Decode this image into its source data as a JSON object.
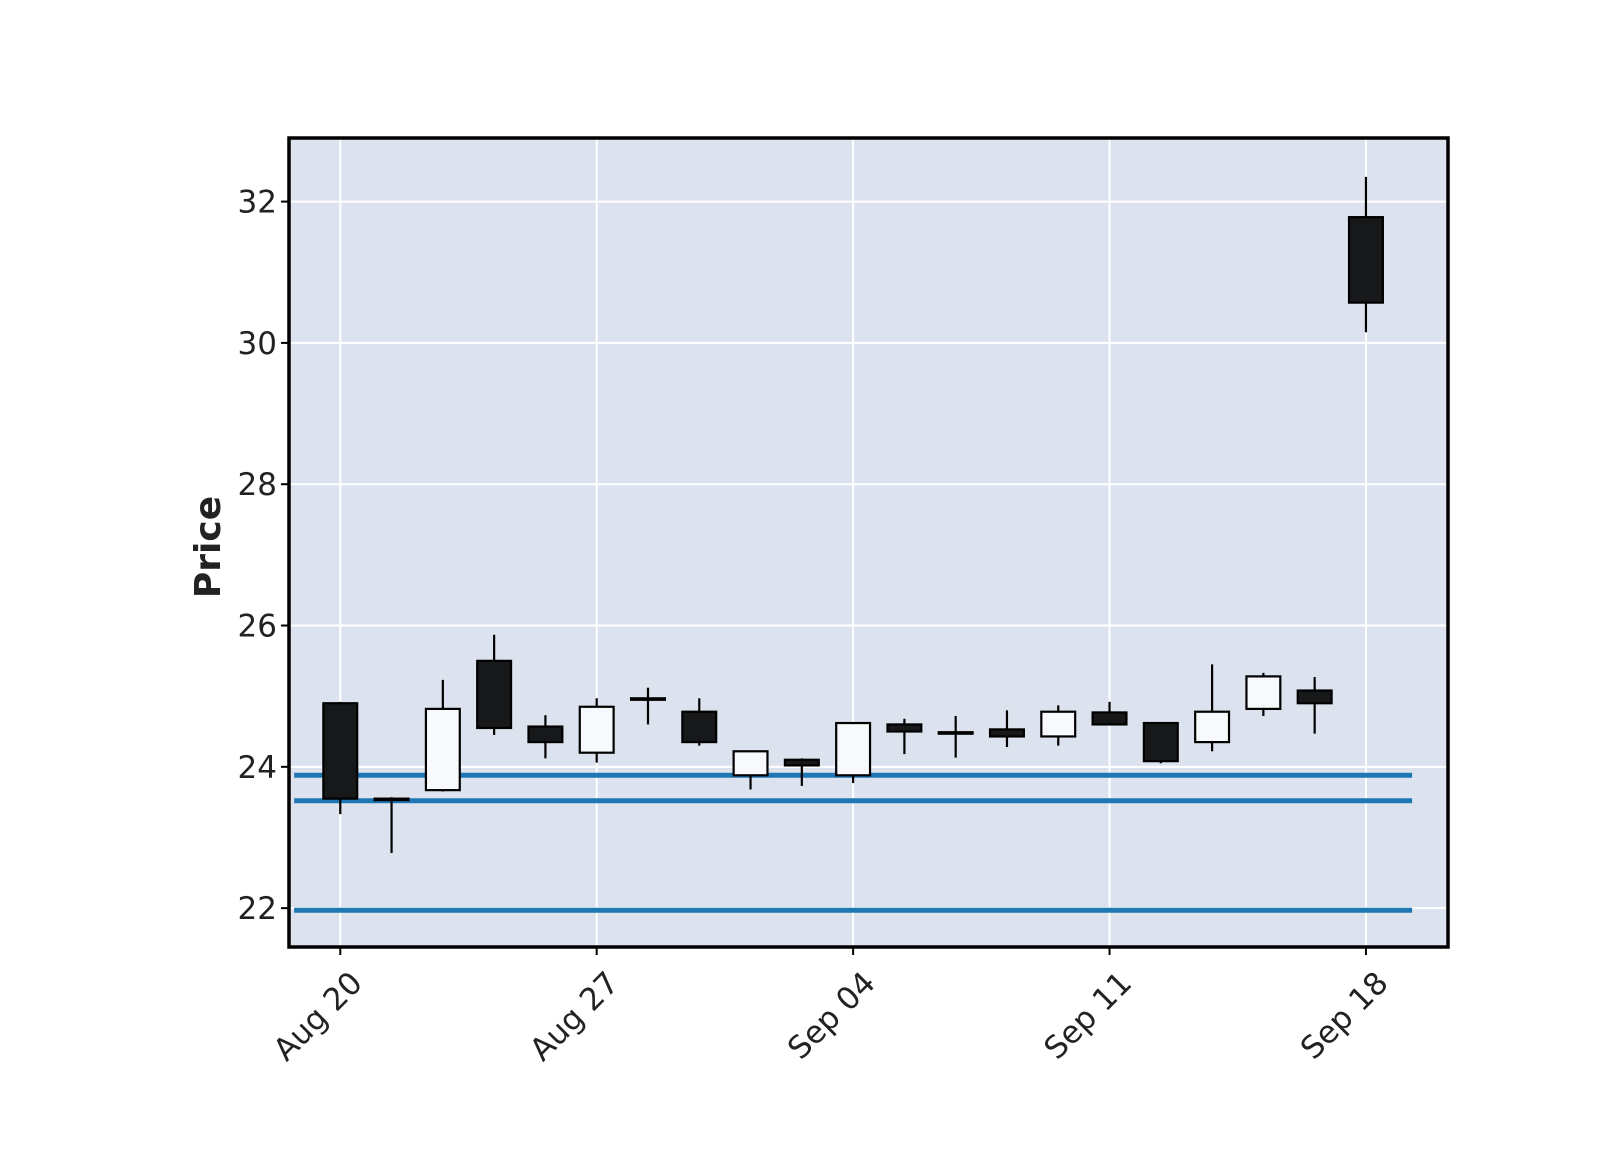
{
  "chart_data": {
    "type": "candlestick",
    "title": "",
    "xlabel": "",
    "ylabel": "Price",
    "ylim": [
      21.45,
      32.9
    ],
    "y_ticks": [
      22,
      24,
      26,
      28,
      30,
      32
    ],
    "x_tick_labels": [
      "Aug 20",
      "Aug 27",
      "Sep 04",
      "Sep 11",
      "Sep 18"
    ],
    "x_tick_indices": [
      0,
      5,
      10,
      15,
      20
    ],
    "grid": true,
    "colors": {
      "background": "#dde3ee",
      "grid": "#ffffff",
      "up_fill": "#f7f9fc",
      "down_fill": "#17181a",
      "edge": "#000000",
      "hline": "#1f77b4"
    },
    "candles": [
      {
        "index": 0,
        "open": 24.9,
        "high": 24.92,
        "low": 23.33,
        "close": 23.55
      },
      {
        "index": 1,
        "open": 23.55,
        "high": 23.57,
        "low": 22.78,
        "close": 23.53
      },
      {
        "index": 2,
        "open": 23.67,
        "high": 25.23,
        "low": 23.65,
        "close": 24.82
      },
      {
        "index": 3,
        "open": 25.5,
        "high": 25.87,
        "low": 24.45,
        "close": 24.55
      },
      {
        "index": 4,
        "open": 24.57,
        "high": 24.73,
        "low": 24.12,
        "close": 24.35
      },
      {
        "index": 5,
        "open": 24.2,
        "high": 24.97,
        "low": 24.06,
        "close": 24.85
      },
      {
        "index": 6,
        "open": 24.95,
        "high": 25.12,
        "low": 24.6,
        "close": 24.97
      },
      {
        "index": 7,
        "open": 24.78,
        "high": 24.97,
        "low": 24.3,
        "close": 24.35
      },
      {
        "index": 8,
        "open": 23.88,
        "high": 24.23,
        "low": 23.68,
        "close": 24.22
      },
      {
        "index": 9,
        "open": 24.1,
        "high": 24.12,
        "low": 23.73,
        "close": 24.02
      },
      {
        "index": 10,
        "open": 23.88,
        "high": 24.63,
        "low": 23.77,
        "close": 24.62
      },
      {
        "index": 11,
        "open": 24.6,
        "high": 24.68,
        "low": 24.18,
        "close": 24.5
      },
      {
        "index": 12,
        "open": 24.47,
        "high": 24.72,
        "low": 24.13,
        "close": 24.49
      },
      {
        "index": 13,
        "open": 24.53,
        "high": 24.8,
        "low": 24.28,
        "close": 24.43
      },
      {
        "index": 14,
        "open": 24.43,
        "high": 24.87,
        "low": 24.3,
        "close": 24.78
      },
      {
        "index": 15,
        "open": 24.77,
        "high": 24.92,
        "low": 24.6,
        "close": 24.6
      },
      {
        "index": 16,
        "open": 24.62,
        "high": 24.63,
        "low": 24.05,
        "close": 24.08
      },
      {
        "index": 17,
        "open": 24.35,
        "high": 25.45,
        "low": 24.22,
        "close": 24.78
      },
      {
        "index": 18,
        "open": 24.82,
        "high": 25.33,
        "low": 24.72,
        "close": 25.28
      },
      {
        "index": 19,
        "open": 25.08,
        "high": 25.27,
        "low": 24.47,
        "close": 24.9
      },
      {
        "index": 20,
        "open": 31.78,
        "high": 32.35,
        "low": 30.15,
        "close": 30.57
      }
    ],
    "hlines": [
      23.88,
      23.52,
      21.97
    ]
  }
}
